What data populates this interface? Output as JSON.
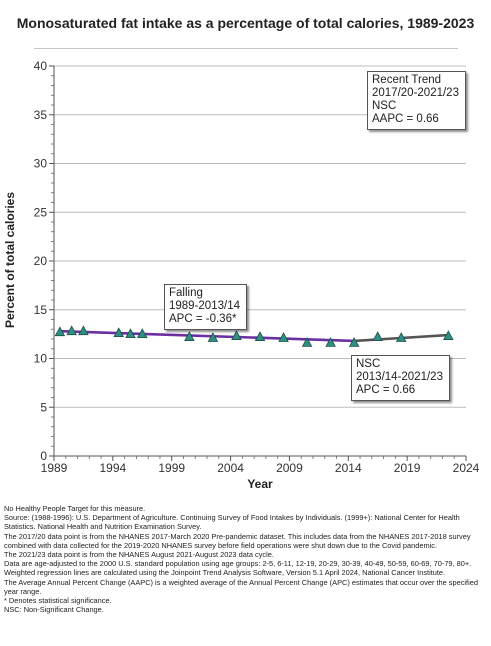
{
  "title": "Monosaturated fat intake as a percentage of total calories, 1989-2023",
  "chart_data": {
    "type": "line",
    "xlabel": "Year",
    "ylabel": "Percent of total calories",
    "xlim": [
      1989,
      2024
    ],
    "ylim": [
      0,
      40
    ],
    "x_ticks": [
      1989,
      1994,
      1999,
      2004,
      2009,
      2014,
      2019,
      2024
    ],
    "y_ticks": [
      0,
      5,
      10,
      15,
      20,
      25,
      30,
      35,
      40
    ],
    "grid": "horizontal",
    "series": [
      {
        "type": "scatter",
        "marker": "triangle",
        "color": "#2f8f83",
        "points": [
          {
            "x": 1989.5,
            "y": 12.7
          },
          {
            "x": 1990.5,
            "y": 12.8
          },
          {
            "x": 1991.5,
            "y": 12.8
          },
          {
            "x": 1994.5,
            "y": 12.6
          },
          {
            "x": 1995.5,
            "y": 12.5
          },
          {
            "x": 1996.5,
            "y": 12.5
          },
          {
            "x": 2000.5,
            "y": 12.2
          },
          {
            "x": 2002.5,
            "y": 12.1
          },
          {
            "x": 2004.5,
            "y": 12.3
          },
          {
            "x": 2006.5,
            "y": 12.2
          },
          {
            "x": 2008.5,
            "y": 12.1
          },
          {
            "x": 2010.5,
            "y": 11.6
          },
          {
            "x": 2012.5,
            "y": 11.6
          },
          {
            "x": 2014.5,
            "y": 11.6
          },
          {
            "x": 2016.5,
            "y": 12.2
          },
          {
            "x": 2018.5,
            "y": 12.1
          },
          {
            "x": 2022.5,
            "y": 12.3
          }
        ]
      },
      {
        "type": "line",
        "color": "#6a2fa0",
        "points": [
          {
            "x": 1989.5,
            "y": 12.8
          },
          {
            "x": 2014.5,
            "y": 11.8
          }
        ]
      },
      {
        "type": "line",
        "color": "#555555",
        "points": [
          {
            "x": 2014.5,
            "y": 11.8
          },
          {
            "x": 2022.5,
            "y": 12.4
          }
        ]
      }
    ]
  },
  "annotations": {
    "recent": {
      "line1": "Recent Trend",
      "line2": "2017/20-2021/23",
      "line3": "NSC",
      "line4": "AAPC =  0.66"
    },
    "falling": {
      "line1": "Falling",
      "line2": "1989-2013/14",
      "line3": "APC = -0.36*"
    },
    "nsc": {
      "line1": "NSC",
      "line2": "2013/14-2021/23",
      "line3": "APC =  0.66"
    }
  },
  "notes": [
    "No Healthy People Target for this measure.",
    "Source: (1988-1996): U.S. Department of Agriculture. Continuing Survey of Food Intakes by Individuals. (1999+): National Center for Health Statistics. National Health and Nutrition Examination Survey.",
    "The 2017/20 data point is from the NHANES 2017-March 2020 Pre-pandemic dataset. This includes data from the NHANES 2017-2018 survey combined with data collected for the 2019-2020 NHANES survey before field operations were shut down due to the Covid pandemic.",
    "The 2021/23 data point is from the NHANES August 2021-August 2023 data cycle.",
    "Data are age-adjusted to the 2000 U.S. standard population using age groups: 2-5, 6-11, 12-19, 20-29, 30-39, 40-49, 50-59, 60-69, 70-79, 80+.",
    "Weighted regression lines are calculated using the Joinpoint Trend Analysis Software, Version 5.1 April 2024, National Cancer Institute.",
    "The Average Annual Percent Change (AAPC) is a weighted average of the Annual Percent Change (APC) estimates that occur over the specified year range.",
    "* Denotes statistical significance.",
    "NSC: Non-Significant Change."
  ]
}
